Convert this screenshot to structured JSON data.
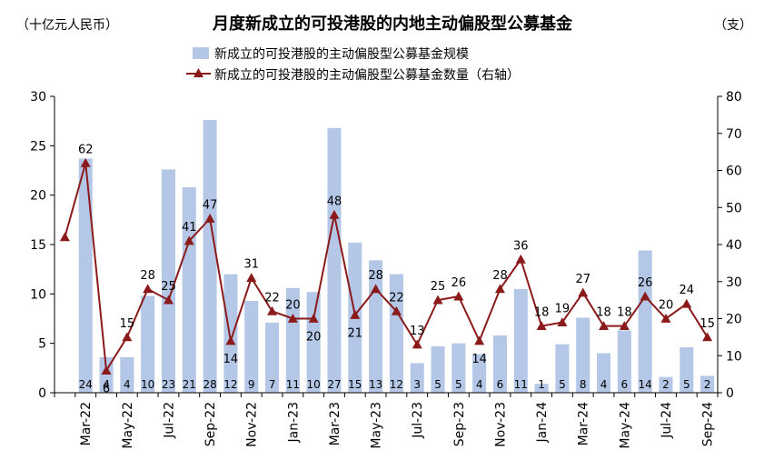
{
  "chart_data": {
    "type": "bar+line",
    "title": "月度新成立的可投港股的内地主动偏股型公募基金",
    "left_unit": "（十亿元人民币）",
    "right_unit": "（支）",
    "legend": {
      "bar": "新成立的可投港股的主动偏股型公募基金规模",
      "line": "新成立的可投港股的主动偏股型公募基金数量（右轴）"
    },
    "colors": {
      "bar": "#b4c7e7",
      "line": "#8b1a1a"
    },
    "categories": [
      "Feb-22",
      "Mar-22",
      "Apr-22",
      "May-22",
      "Jun-22",
      "Jul-22",
      "Aug-22",
      "Sep-22",
      "Oct-22",
      "Nov-22",
      "Dec-22",
      "Jan-23",
      "Feb-23",
      "Mar-23",
      "Apr-23",
      "May-23",
      "Jun-23",
      "Jul-23",
      "Aug-23",
      "Sep-23",
      "Oct-23",
      "Nov-23",
      "Dec-23",
      "Jan-24",
      "Feb-24",
      "Mar-24",
      "Apr-24",
      "May-24",
      "Jun-24",
      "Jul-24",
      "Aug-24",
      "Sep-24"
    ],
    "x_tick_labels": [
      "Mar-22",
      "May-22",
      "Jul-22",
      "Sep-22",
      "Nov-22",
      "Jan-23",
      "Mar-23",
      "May-23",
      "Jul-23",
      "Sep-23",
      "Nov-23",
      "Jan-24",
      "Mar-24",
      "May-24",
      "Jul-24",
      "Sep-24"
    ],
    "bar_series": {
      "name": "新成立的可投港股的主动偏股型公募基金规模",
      "values": [
        null,
        23.7,
        3.6,
        3.6,
        9.8,
        22.6,
        20.8,
        27.6,
        12.0,
        9.3,
        7.1,
        10.6,
        10.2,
        26.8,
        15.2,
        13.4,
        12.0,
        3.0,
        4.7,
        5.0,
        3.9,
        5.8,
        10.5,
        0.9,
        4.9,
        7.6,
        4.0,
        6.3,
        14.4,
        1.6,
        4.6,
        1.7
      ],
      "labels": [
        "",
        "24",
        "4",
        "4",
        "10",
        "23",
        "21",
        "28",
        "12",
        "9",
        "7",
        "11",
        "10",
        "27",
        "15",
        "13",
        "12",
        "3",
        "5",
        "5",
        "4",
        "6",
        "11",
        "1",
        "5",
        "8",
        "4",
        "6",
        "14",
        "2",
        "5",
        "2"
      ]
    },
    "line_series": {
      "name": "新成立的可投港股的主动偏股型公募基金数量（右轴）",
      "values": [
        42,
        62,
        6,
        15,
        28,
        25,
        41,
        47,
        14,
        31,
        22,
        20,
        20,
        48,
        21,
        28,
        22,
        13,
        25,
        26,
        14,
        28,
        36,
        18,
        19,
        27,
        18,
        18,
        26,
        20,
        24,
        15
      ],
      "labels": [
        "",
        "62",
        "6",
        "15",
        "28",
        "25",
        "41",
        "47",
        "14",
        "31",
        "22",
        "20",
        "20",
        "48",
        "21",
        "28",
        "22",
        "13",
        "25",
        "26",
        "14",
        "28",
        "36",
        "18",
        "19",
        "27",
        "18",
        "18",
        "26",
        "20",
        "24",
        "15"
      ]
    },
    "y_left": {
      "min": 0,
      "max": 30,
      "step": 5,
      "ticks": [
        "0",
        "5",
        "10",
        "15",
        "20",
        "25",
        "30"
      ]
    },
    "y_right": {
      "min": 0,
      "max": 80,
      "step": 10,
      "ticks": [
        "0",
        "10",
        "20",
        "30",
        "40",
        "50",
        "60",
        "70",
        "80"
      ]
    },
    "grid": false,
    "legend_position": "top-center"
  }
}
